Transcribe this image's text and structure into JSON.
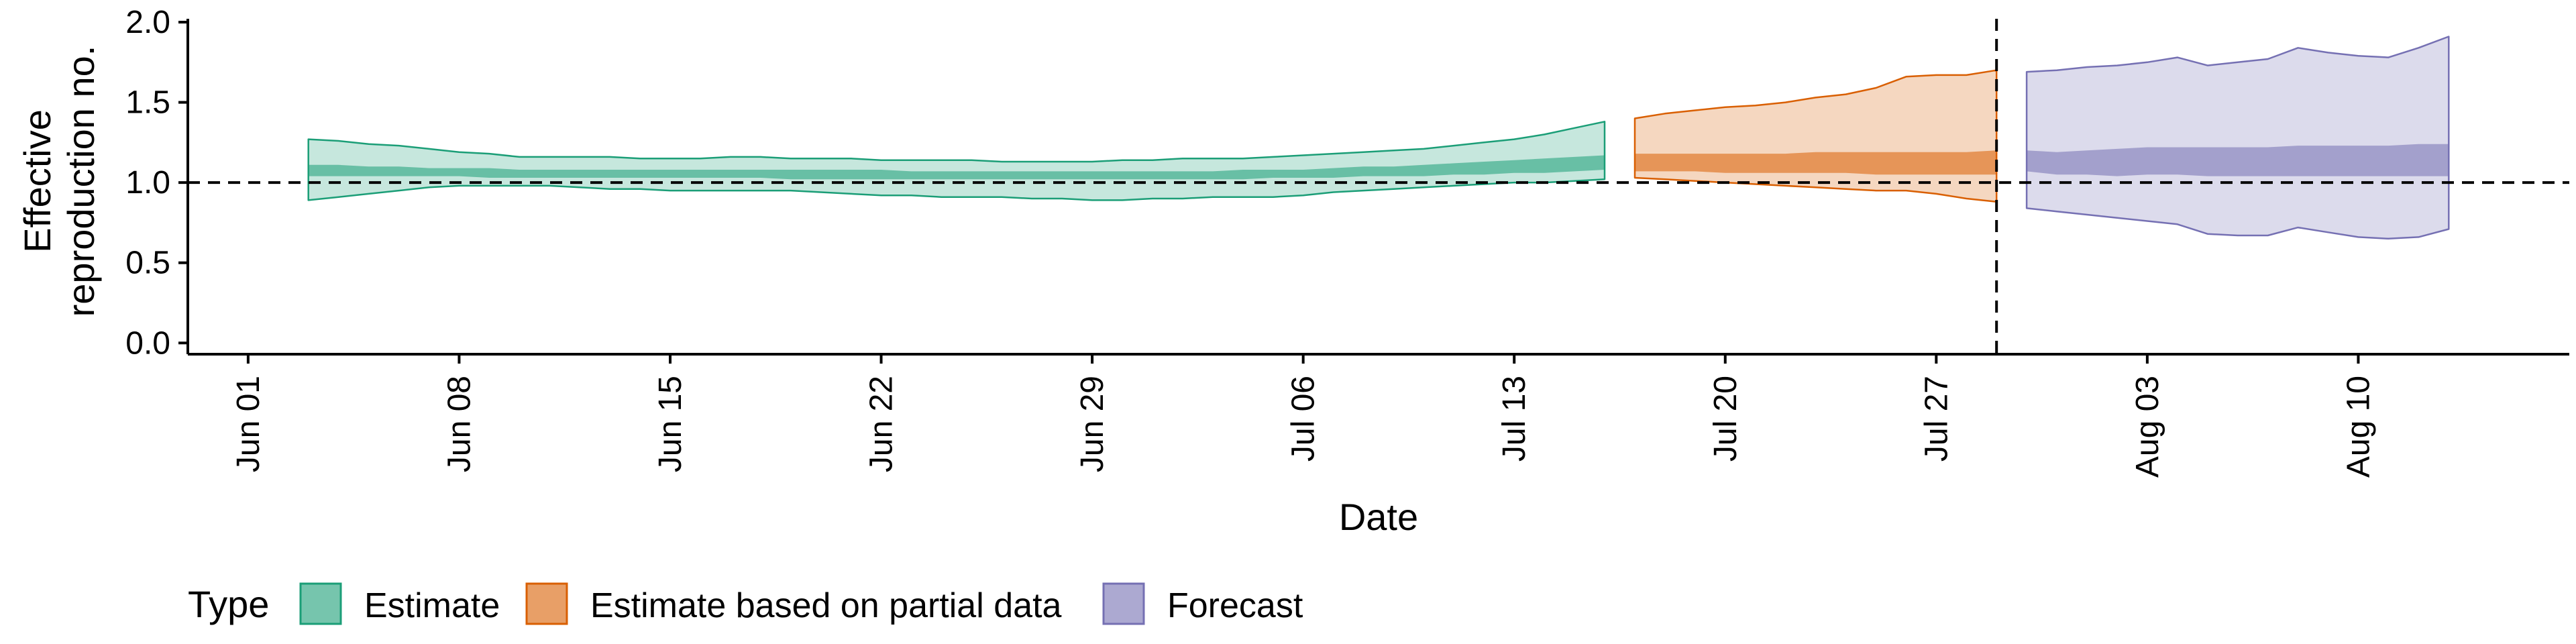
{
  "chart_data": {
    "type": "area",
    "title": "",
    "xlabel": "Date",
    "ylabel": "Effective reproduction no.",
    "ylabel_lines": [
      "Effective",
      "reproduction no."
    ],
    "xlim": [
      "2020-05-30",
      "2020-08-17"
    ],
    "ylim": [
      -0.07,
      2.0
    ],
    "yticks": [
      0.0,
      0.5,
      1.0,
      1.5,
      2.0
    ],
    "ytick_labels": [
      "0.0",
      "0.5",
      "1.0",
      "1.5",
      "2.0"
    ],
    "xticks": [
      "2020-06-01",
      "2020-06-08",
      "2020-06-15",
      "2020-06-22",
      "2020-06-29",
      "2020-07-06",
      "2020-07-13",
      "2020-07-20",
      "2020-07-27",
      "2020-08-03",
      "2020-08-10"
    ],
    "xtick_labels": [
      "Jun 01",
      "Jun 08",
      "Jun 15",
      "Jun 22",
      "Jun 29",
      "Jul 06",
      "Jul 13",
      "Jul 20",
      "Jul 27",
      "Aug 03",
      "Aug 10"
    ],
    "reference_line_y": 1.0,
    "forecast_date_line": "2020-07-29",
    "grid": false,
    "legend": {
      "title": "Type",
      "position": "bottom-left",
      "entries": [
        "Estimate",
        "Estimate based on partial data",
        "Forecast"
      ]
    },
    "series": [
      {
        "name": "Estimate",
        "fill": "#1b9e77",
        "stroke": "#1b9e77",
        "x": [
          "2020-06-03",
          "2020-06-04",
          "2020-06-05",
          "2020-06-06",
          "2020-06-07",
          "2020-06-08",
          "2020-06-09",
          "2020-06-10",
          "2020-06-11",
          "2020-06-12",
          "2020-06-13",
          "2020-06-14",
          "2020-06-15",
          "2020-06-16",
          "2020-06-17",
          "2020-06-18",
          "2020-06-19",
          "2020-06-20",
          "2020-06-21",
          "2020-06-22",
          "2020-06-23",
          "2020-06-24",
          "2020-06-25",
          "2020-06-26",
          "2020-06-27",
          "2020-06-28",
          "2020-06-29",
          "2020-06-30",
          "2020-07-01",
          "2020-07-02",
          "2020-07-03",
          "2020-07-04",
          "2020-07-05",
          "2020-07-06",
          "2020-07-07",
          "2020-07-08",
          "2020-07-09",
          "2020-07-10",
          "2020-07-11",
          "2020-07-12",
          "2020-07-13",
          "2020-07-14",
          "2020-07-15",
          "2020-07-16"
        ],
        "upper90": [
          1.27,
          1.26,
          1.24,
          1.23,
          1.21,
          1.19,
          1.18,
          1.16,
          1.16,
          1.16,
          1.16,
          1.15,
          1.15,
          1.15,
          1.16,
          1.16,
          1.15,
          1.15,
          1.15,
          1.14,
          1.14,
          1.14,
          1.14,
          1.13,
          1.13,
          1.13,
          1.13,
          1.14,
          1.14,
          1.15,
          1.15,
          1.15,
          1.16,
          1.17,
          1.18,
          1.19,
          1.2,
          1.21,
          1.23,
          1.25,
          1.27,
          1.3,
          1.34,
          1.38
        ],
        "lower90": [
          0.89,
          0.91,
          0.93,
          0.95,
          0.97,
          0.98,
          0.98,
          0.98,
          0.98,
          0.97,
          0.96,
          0.96,
          0.95,
          0.95,
          0.95,
          0.95,
          0.95,
          0.94,
          0.93,
          0.92,
          0.92,
          0.91,
          0.91,
          0.91,
          0.9,
          0.9,
          0.89,
          0.89,
          0.9,
          0.9,
          0.91,
          0.91,
          0.91,
          0.92,
          0.94,
          0.95,
          0.96,
          0.97,
          0.98,
          0.99,
          1.0,
          1.0,
          1.01,
          1.02
        ],
        "upper50": [
          1.11,
          1.11,
          1.1,
          1.1,
          1.09,
          1.09,
          1.09,
          1.08,
          1.08,
          1.08,
          1.08,
          1.08,
          1.08,
          1.08,
          1.08,
          1.08,
          1.08,
          1.08,
          1.08,
          1.08,
          1.07,
          1.07,
          1.07,
          1.07,
          1.07,
          1.07,
          1.07,
          1.07,
          1.07,
          1.07,
          1.07,
          1.08,
          1.08,
          1.08,
          1.09,
          1.1,
          1.1,
          1.11,
          1.12,
          1.13,
          1.14,
          1.15,
          1.16,
          1.17
        ],
        "lower50": [
          1.04,
          1.04,
          1.04,
          1.04,
          1.04,
          1.04,
          1.03,
          1.03,
          1.03,
          1.03,
          1.03,
          1.03,
          1.03,
          1.03,
          1.03,
          1.03,
          1.02,
          1.02,
          1.02,
          1.02,
          1.02,
          1.02,
          1.02,
          1.02,
          1.02,
          1.02,
          1.02,
          1.02,
          1.02,
          1.02,
          1.02,
          1.02,
          1.03,
          1.03,
          1.03,
          1.04,
          1.04,
          1.04,
          1.05,
          1.05,
          1.06,
          1.06,
          1.07,
          1.08
        ]
      },
      {
        "name": "Estimate based on partial data",
        "fill": "#d95f02",
        "stroke": "#d95f02",
        "x": [
          "2020-07-17",
          "2020-07-18",
          "2020-07-19",
          "2020-07-20",
          "2020-07-21",
          "2020-07-22",
          "2020-07-23",
          "2020-07-24",
          "2020-07-25",
          "2020-07-26",
          "2020-07-27",
          "2020-07-28",
          "2020-07-29"
        ],
        "upper90": [
          1.4,
          1.43,
          1.45,
          1.47,
          1.48,
          1.5,
          1.53,
          1.55,
          1.59,
          1.66,
          1.67,
          1.67,
          1.7
        ],
        "lower90": [
          1.03,
          1.02,
          1.01,
          1.0,
          0.99,
          0.98,
          0.97,
          0.96,
          0.95,
          0.95,
          0.93,
          0.9,
          0.88
        ],
        "upper50": [
          1.18,
          1.18,
          1.18,
          1.18,
          1.18,
          1.18,
          1.19,
          1.19,
          1.19,
          1.19,
          1.19,
          1.19,
          1.2
        ],
        "lower50": [
          1.07,
          1.07,
          1.07,
          1.06,
          1.06,
          1.06,
          1.06,
          1.06,
          1.05,
          1.05,
          1.05,
          1.05,
          1.05
        ]
      },
      {
        "name": "Forecast",
        "fill": "#7570b3",
        "stroke": "#7570b3",
        "x": [
          "2020-07-30",
          "2020-07-31",
          "2020-08-01",
          "2020-08-02",
          "2020-08-03",
          "2020-08-04",
          "2020-08-05",
          "2020-08-06",
          "2020-08-07",
          "2020-08-08",
          "2020-08-09",
          "2020-08-10",
          "2020-08-11",
          "2020-08-12",
          "2020-08-13"
        ],
        "upper90": [
          1.69,
          1.7,
          1.72,
          1.73,
          1.75,
          1.78,
          1.73,
          1.75,
          1.77,
          1.84,
          1.81,
          1.79,
          1.78,
          1.84,
          1.91
        ],
        "lower90": [
          0.84,
          0.82,
          0.8,
          0.78,
          0.76,
          0.74,
          0.68,
          0.67,
          0.67,
          0.72,
          0.69,
          0.66,
          0.65,
          0.66,
          0.71
        ],
        "upper50": [
          1.2,
          1.19,
          1.2,
          1.21,
          1.22,
          1.22,
          1.22,
          1.22,
          1.22,
          1.23,
          1.23,
          1.23,
          1.23,
          1.24,
          1.24
        ],
        "lower50": [
          1.07,
          1.05,
          1.05,
          1.04,
          1.05,
          1.05,
          1.04,
          1.04,
          1.04,
          1.04,
          1.04,
          1.04,
          1.04,
          1.04,
          1.04
        ]
      }
    ]
  }
}
